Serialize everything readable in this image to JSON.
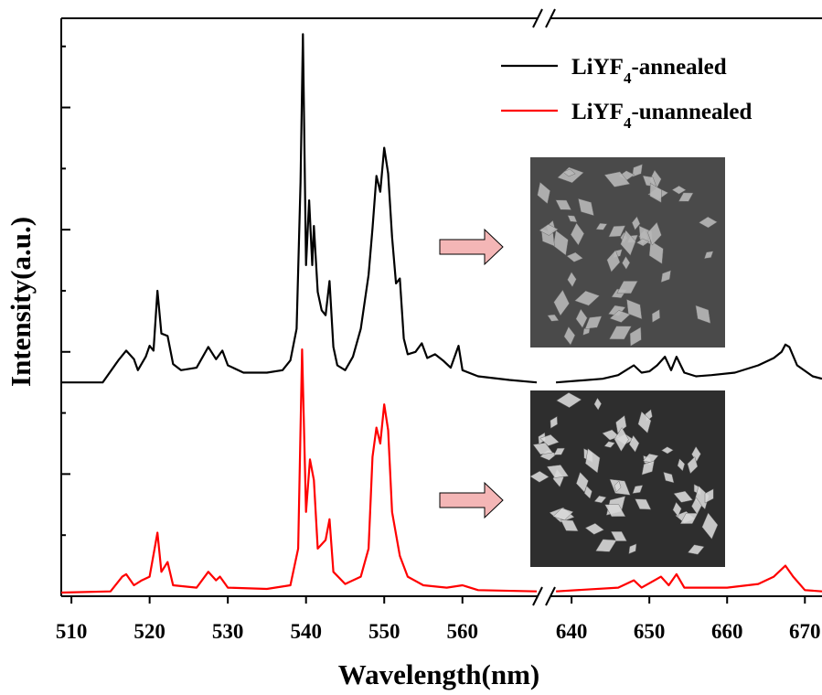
{
  "chart_data": {
    "type": "line",
    "x_label": "Wavelength(nm)",
    "y_label": "Intensity(a.u.)",
    "xlim_segments": [
      [
        508.7,
        569.5
      ],
      [
        637.4,
        672.2
      ]
    ],
    "xticks": [
      510,
      520,
      530,
      540,
      550,
      560,
      640,
      650,
      660,
      670
    ],
    "ylim": [
      0,
      4.73
    ],
    "yticks": [
      0,
      1,
      2,
      3,
      4
    ],
    "yminor": [
      0.5,
      1.5,
      2.5,
      3.5,
      4.5
    ],
    "legend": "upper right",
    "series": [
      {
        "name": "LiYF4-annealed",
        "color": "#000000",
        "x": [
          508.7,
          514,
          516,
          517,
          518,
          518.5,
          519.5,
          520,
          520.5,
          521,
          521.5,
          522.3,
          523,
          524,
          526,
          527.5,
          528.5,
          529.3,
          530,
          532,
          535,
          537,
          538,
          538.8,
          539.3,
          539.6,
          540,
          540.4,
          540.8,
          541,
          541.5,
          542,
          542.5,
          543,
          543.5,
          544,
          545,
          546,
          547,
          548,
          548.5,
          549,
          549.5,
          550,
          550.5,
          551,
          551.5,
          552,
          552.5,
          553,
          554,
          554.8,
          555.5,
          556.5,
          557.5,
          558.5,
          559.5,
          560,
          562,
          566,
          569.5,
          600,
          638,
          644,
          646,
          647,
          648,
          649,
          650,
          651,
          652,
          652.8,
          653.5,
          654.5,
          656,
          658,
          661,
          664,
          666,
          667,
          667.5,
          668,
          669,
          671,
          672.2
        ],
        "values": [
          1.75,
          1.75,
          1.93,
          2.01,
          1.94,
          1.85,
          1.96,
          2.05,
          2.01,
          2.5,
          2.15,
          2.13,
          1.9,
          1.85,
          1.87,
          2.04,
          1.94,
          2.01,
          1.89,
          1.83,
          1.83,
          1.85,
          1.93,
          2.19,
          3.39,
          4.6,
          2.71,
          3.24,
          2.71,
          3.03,
          2.49,
          2.34,
          2.3,
          2.58,
          2.04,
          1.89,
          1.85,
          1.96,
          2.19,
          2.63,
          3.01,
          3.44,
          3.31,
          3.67,
          3.46,
          2.94,
          2.56,
          2.6,
          2.11,
          1.98,
          2.0,
          2.07,
          1.95,
          1.98,
          1.93,
          1.87,
          2.05,
          1.85,
          1.8,
          1.77,
          1.75,
          null,
          1.75,
          1.78,
          1.81,
          1.85,
          1.89,
          1.83,
          1.84,
          1.89,
          1.96,
          1.85,
          1.96,
          1.83,
          1.8,
          1.81,
          1.83,
          1.89,
          1.95,
          2.0,
          2.06,
          2.04,
          1.89,
          1.8,
          1.78
        ]
      },
      {
        "name": "LiYF4-unannealed",
        "color": "#ff0000",
        "x": [
          508.7,
          515,
          516.5,
          517,
          518,
          519,
          520,
          521,
          521.5,
          522.3,
          523,
          526,
          527.5,
          528.5,
          529,
          530,
          535,
          538,
          539,
          539.5,
          540,
          540.5,
          541,
          541.5,
          542.5,
          543,
          543.5,
          545,
          547,
          548,
          548.5,
          549,
          549.5,
          550,
          550.5,
          551,
          552,
          553,
          555,
          558,
          560,
          562,
          569.5,
          600,
          638,
          646,
          648,
          649,
          651.5,
          652.5,
          653.5,
          654.5,
          660,
          664,
          666,
          667.5,
          668.5,
          670,
          672.2
        ],
        "values": [
          0.03,
          0.04,
          0.16,
          0.18,
          0.09,
          0.13,
          0.16,
          0.52,
          0.2,
          0.28,
          0.09,
          0.07,
          0.2,
          0.13,
          0.16,
          0.07,
          0.06,
          0.09,
          0.39,
          2.02,
          0.69,
          1.12,
          0.95,
          0.39,
          0.46,
          0.63,
          0.2,
          0.1,
          0.16,
          0.39,
          1.14,
          1.38,
          1.25,
          1.57,
          1.36,
          0.69,
          0.33,
          0.16,
          0.09,
          0.07,
          0.09,
          0.05,
          0.04,
          null,
          0.04,
          0.07,
          0.13,
          0.07,
          0.16,
          0.09,
          0.18,
          0.07,
          0.07,
          0.1,
          0.16,
          0.25,
          0.16,
          0.05,
          0.04
        ]
      }
    ]
  }
}
